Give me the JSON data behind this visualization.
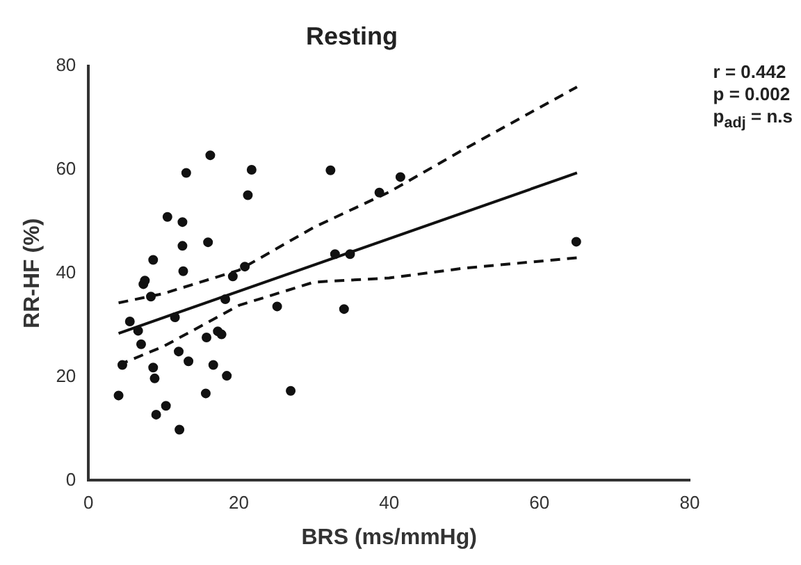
{
  "chart_data": {
    "type": "scatter",
    "title": "Resting",
    "xlabel": "BRS (ms/mmHg)",
    "ylabel": "RR-HF (%)",
    "annotations": [
      "r = 0.442",
      "p = 0.002",
      "p$_{adj}$ = n.s"
    ],
    "xlim": [
      0,
      80
    ],
    "xticks": [
      0,
      20,
      40,
      60,
      80
    ],
    "ylim": [
      0,
      80
    ],
    "yticks": [
      0,
      20,
      40,
      60,
      80
    ],
    "grid": false,
    "legend": false,
    "marker": "circle",
    "series": [
      {
        "color": "#111111",
        "x": [
          4.0,
          5.5,
          4.5,
          6.6,
          7.0,
          7.3,
          7.5,
          8.3,
          8.6,
          8.6,
          8.8,
          9.0,
          10.3,
          10.5,
          11.5,
          12.1,
          12.0,
          12.5,
          12.5,
          12.6,
          13.0,
          13.3,
          15.6,
          15.7,
          15.9,
          16.2,
          16.6,
          17.2,
          17.7,
          18.2,
          18.4,
          19.2,
          20.8,
          21.2,
          21.7,
          25.1,
          26.9,
          32.2,
          32.8,
          34.0,
          34.8,
          38.7,
          41.5,
          64.9
        ],
        "values": [
          16.4,
          30.7,
          22.3,
          28.9,
          26.3,
          37.9,
          38.6,
          35.5,
          42.6,
          21.8,
          19.7,
          12.7,
          14.4,
          50.9,
          31.5,
          9.8,
          24.9,
          49.9,
          45.3,
          40.4,
          59.4,
          23.0,
          16.8,
          27.6,
          46.0,
          62.8,
          22.3,
          28.8,
          28.2,
          35.0,
          20.2,
          39.4,
          41.3,
          55.1,
          60.0,
          33.6,
          17.3,
          59.9,
          43.7,
          33.1,
          43.7,
          55.6,
          58.6,
          46.1
        ]
      },
      {
        "type": "line",
        "color": "#111111",
        "line_style": "solid",
        "marker": "none",
        "x": [
          4,
          65
        ],
        "values": [
          28.4,
          59.4
        ]
      },
      {
        "type": "line",
        "color": "#111111",
        "line_style": "dashed",
        "marker": "none",
        "x": [
          4,
          10,
          20,
          30,
          40,
          50,
          65
        ],
        "values": [
          34.3,
          36.1,
          40.6,
          48.9,
          55.7,
          64.0,
          76.0
        ]
      },
      {
        "type": "line",
        "color": "#111111",
        "line_style": "dashed",
        "marker": "none",
        "x": [
          4,
          10,
          20,
          30,
          40,
          50,
          65
        ],
        "values": [
          22.3,
          25.9,
          33.8,
          38.3,
          39.1,
          41.0,
          43.0
        ]
      }
    ]
  }
}
